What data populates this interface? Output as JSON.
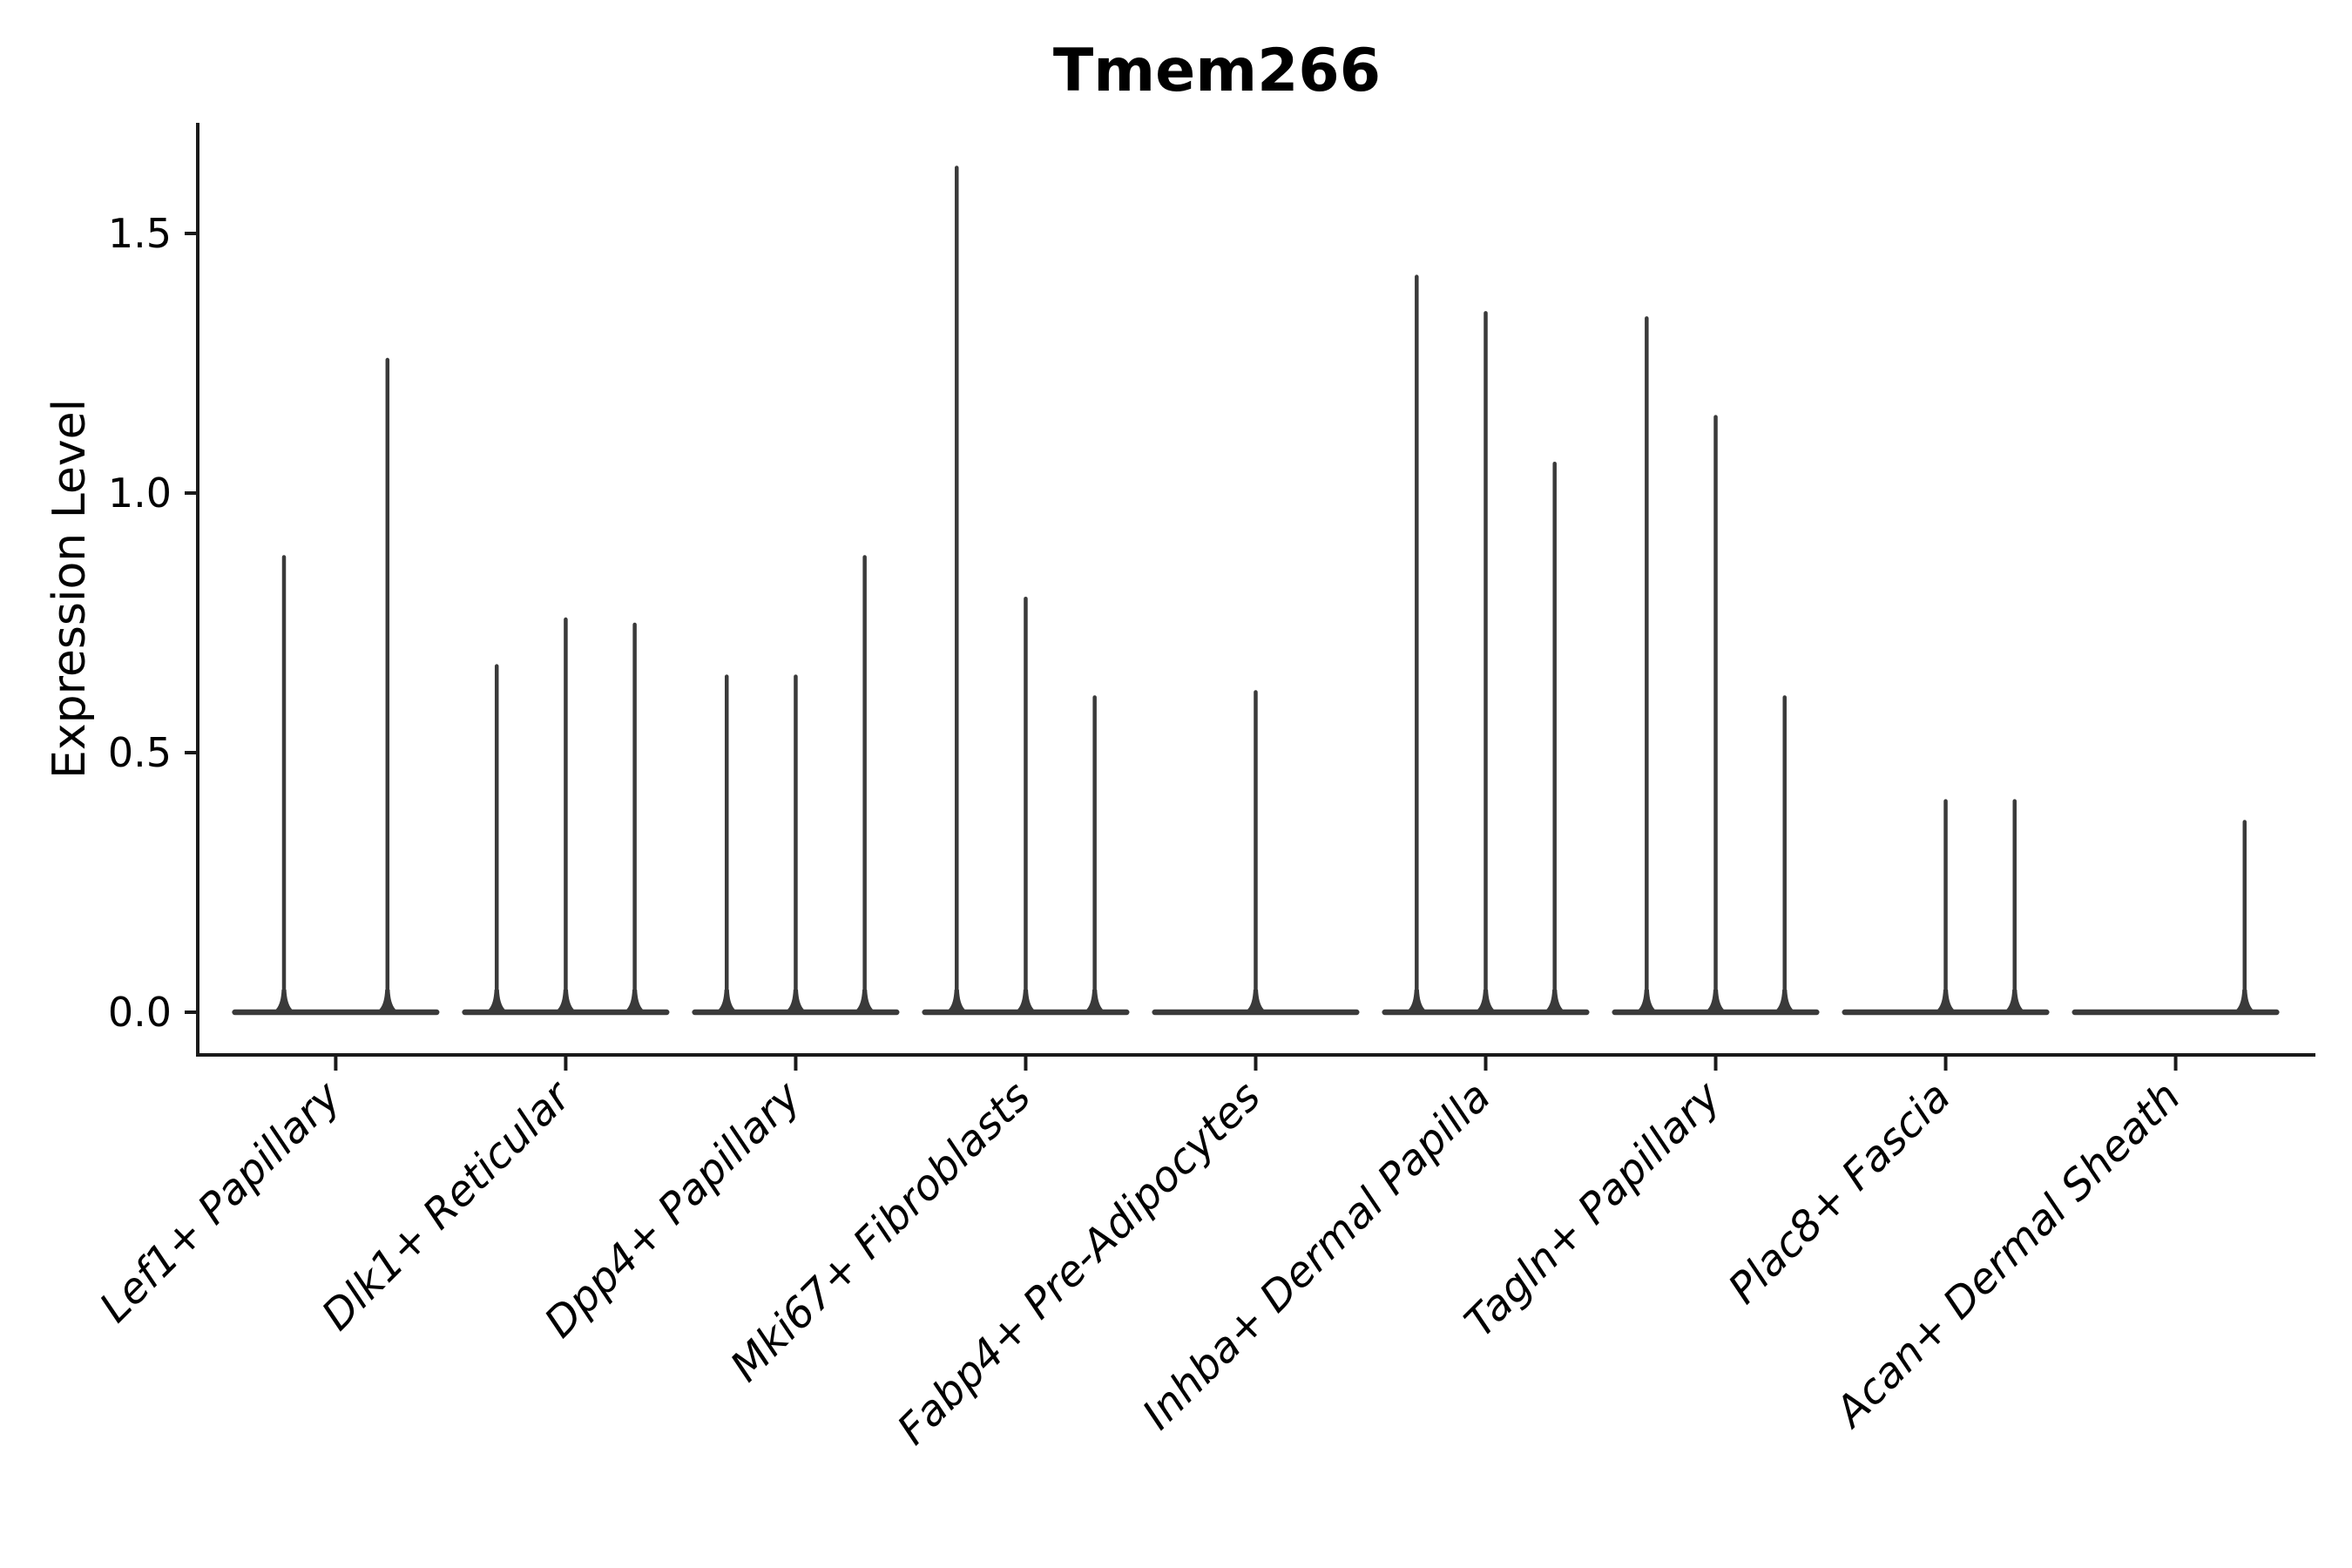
{
  "chart_data": {
    "type": "violin",
    "title": "Tmem266",
    "ylabel": "Expression Level",
    "xlabel": "",
    "yticks": [
      0.0,
      0.5,
      1.0,
      1.5
    ],
    "ytick_labels": [
      "0.0",
      "0.5",
      "1.0",
      "1.5"
    ],
    "ylim": [
      -0.08,
      1.71
    ],
    "grid": false,
    "legend": null,
    "categories": [
      "Lef1+ Papillary",
      "Dlk1+ Reticular",
      "Dpp4+ Papillary",
      "Mki67+ Fibroblasts",
      "Fabp4+ Pre-Adipocytes",
      "Inhba+ Dermal Papilla",
      "Tagln+ Papillary",
      "Plac8+ Fascia",
      "Acan+ Dermal Sheath"
    ],
    "violins": [
      {
        "category": "Lef1+ Papillary",
        "maxima": [
          0.88,
          1.26
        ]
      },
      {
        "category": "Dlk1+ Reticular",
        "maxima": [
          0.67,
          0.76,
          0.75
        ]
      },
      {
        "category": "Dpp4+ Papillary",
        "maxima": [
          0.65,
          0.65,
          0.88
        ]
      },
      {
        "category": "Mki67+ Fibroblasts",
        "maxima": [
          1.63,
          0.8,
          0.61
        ]
      },
      {
        "category": "Fabp4+ Pre-Adipocytes",
        "maxima": [
          0.0,
          0.62,
          0.0
        ]
      },
      {
        "category": "Inhba+ Dermal Papilla",
        "maxima": [
          1.42,
          1.35,
          1.06
        ]
      },
      {
        "category": "Tagln+ Papillary",
        "maxima": [
          1.34,
          1.15,
          0.61
        ]
      },
      {
        "category": "Plac8+ Fascia",
        "maxima": [
          0.0,
          0.41,
          0.41
        ]
      },
      {
        "category": "Acan+ Dermal Sheath",
        "maxima": [
          0.0,
          0.0,
          0.37
        ]
      }
    ],
    "colors": {
      "violin": "#3a3a3a",
      "axis": "#1a1a1a",
      "text": "#000000",
      "background": "#ffffff"
    }
  }
}
